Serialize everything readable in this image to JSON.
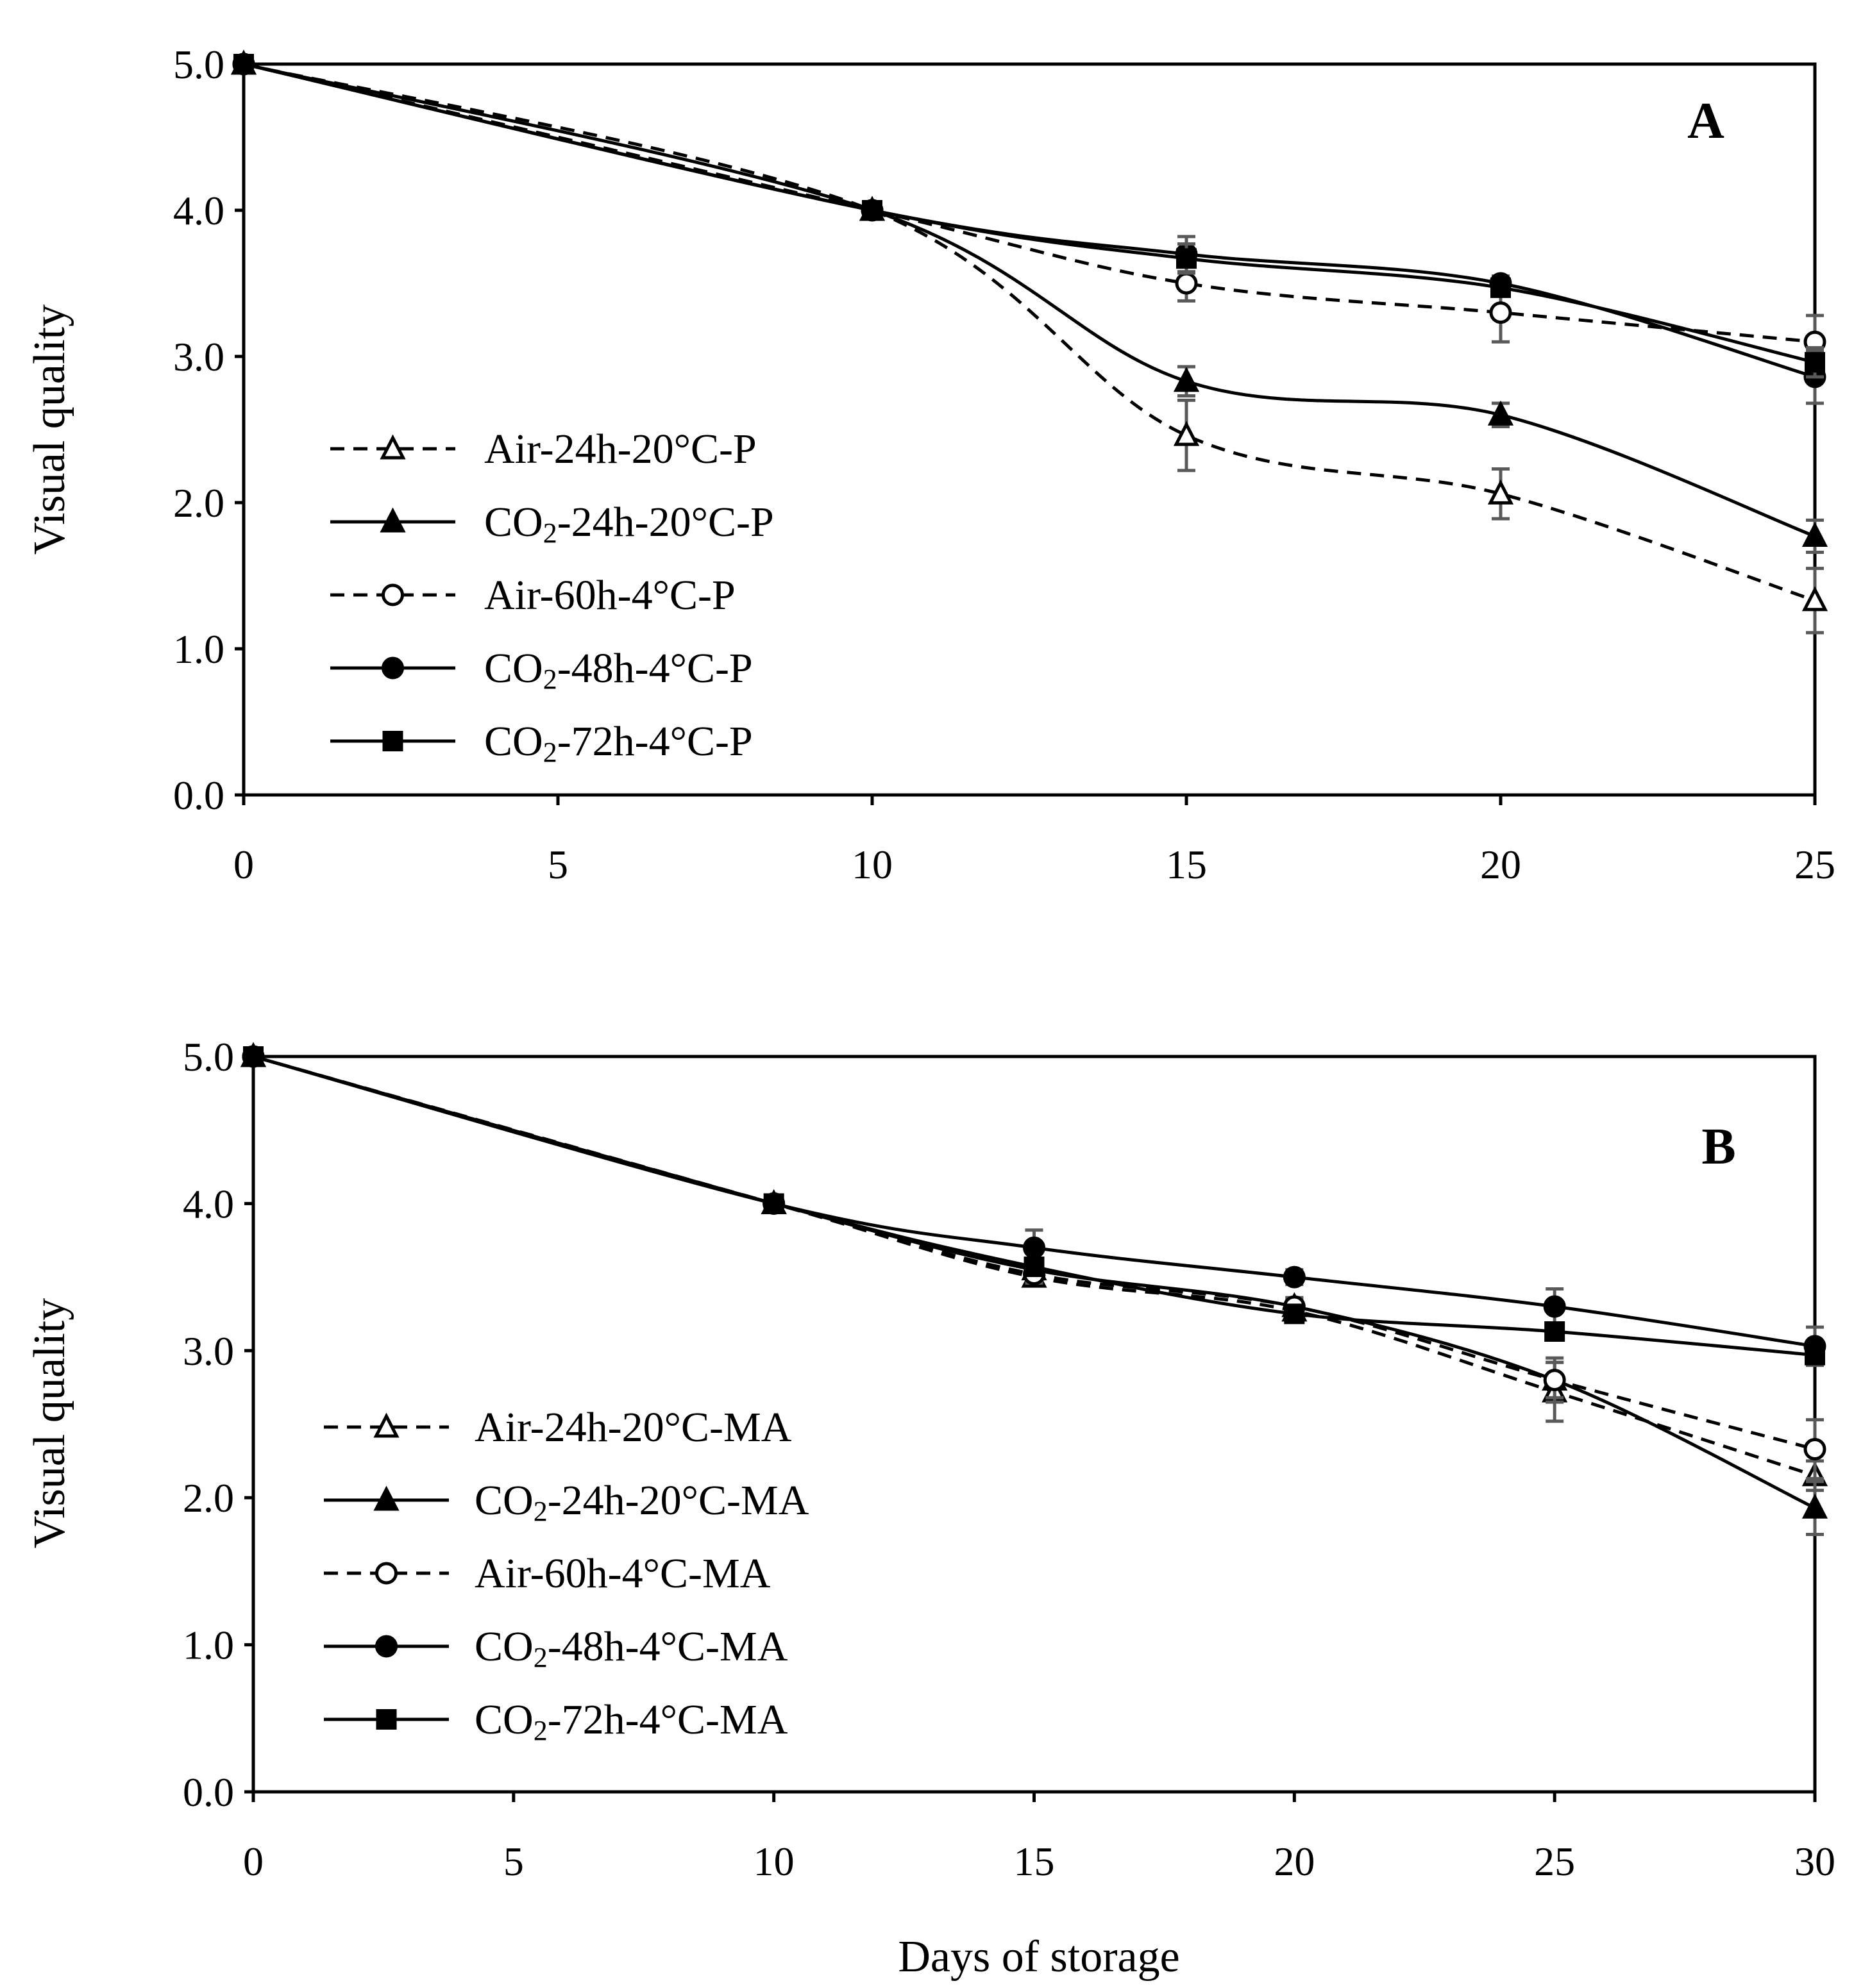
{
  "colors": {
    "ink": "#000000",
    "errorbar": "#595959",
    "background": "#ffffff"
  },
  "figure": {
    "xlabel_shared": "Days of storage"
  },
  "chart_data": [
    {
      "type": "line",
      "panel_label": "A",
      "ylabel": "Visual quality",
      "xlabel": "",
      "xlim": [
        0,
        25
      ],
      "ylim": [
        0,
        5
      ],
      "xticks": [
        "0",
        "5",
        "10",
        "15",
        "20",
        "25"
      ],
      "yticks": [
        "0.0",
        "1.0",
        "2.0",
        "3.0",
        "4.0",
        "5.0"
      ],
      "legend_position": "lower-left",
      "grid": false,
      "series": [
        {
          "name": "Air-24h-20°C-P",
          "name_prefix": "Air",
          "name_suffix": "-24h-20°C-P",
          "subscript": "",
          "marker": "open-triangle",
          "dash": "dashed",
          "x": [
            0,
            10,
            15,
            20,
            25
          ],
          "y": [
            5.0,
            4.0,
            2.46,
            2.06,
            1.33
          ],
          "err": [
            0,
            0,
            0.24,
            0.17,
            0.22
          ]
        },
        {
          "name": "CO2-24h-20°C-P",
          "name_prefix": "CO",
          "name_suffix": "-24h-20°C-P",
          "subscript": "2",
          "marker": "filled-triangle",
          "dash": "solid",
          "x": [
            0,
            10,
            15,
            20,
            25
          ],
          "y": [
            5.0,
            4.0,
            2.83,
            2.6,
            1.77
          ],
          "err": [
            0,
            0,
            0.1,
            0.08,
            0.11
          ]
        },
        {
          "name": "Air-60h-4°C-P",
          "name_prefix": "Air",
          "name_suffix": "-60h-4°C-P",
          "subscript": "",
          "marker": "open-circle",
          "dash": "dashed",
          "x": [
            0,
            10,
            15,
            20,
            25
          ],
          "y": [
            5.0,
            4.0,
            3.5,
            3.3,
            3.1
          ],
          "err": [
            0,
            0,
            0.12,
            0.2,
            0.18
          ]
        },
        {
          "name": "CO2-48h-4°C-P",
          "name_prefix": "CO",
          "name_suffix": "-48h-4°C-P",
          "subscript": "2",
          "marker": "filled-circle",
          "dash": "solid",
          "x": [
            0,
            10,
            15,
            20,
            25
          ],
          "y": [
            5.0,
            4.0,
            3.7,
            3.5,
            2.86
          ],
          "err": [
            0,
            0,
            0.12,
            0.05,
            0.18
          ]
        },
        {
          "name": "CO2-72h-4°C-P",
          "name_prefix": "CO",
          "name_suffix": "-72h-4°C-P",
          "subscript": "2",
          "marker": "filled-square",
          "dash": "solid",
          "x": [
            0,
            10,
            15,
            20,
            25
          ],
          "y": [
            5.0,
            4.0,
            3.67,
            3.47,
            2.96
          ],
          "err": [
            0,
            0,
            0.1,
            0.05,
            0.1
          ]
        }
      ]
    },
    {
      "type": "line",
      "panel_label": "B",
      "ylabel": "Visual quality",
      "xlabel": "Days of storage",
      "xlim": [
        0,
        30
      ],
      "ylim": [
        0,
        5
      ],
      "xticks": [
        "0",
        "5",
        "10",
        "15",
        "20",
        "25",
        "30"
      ],
      "yticks": [
        "0.0",
        "1.0",
        "2.0",
        "3.0",
        "4.0",
        "5.0"
      ],
      "legend_position": "lower-left",
      "grid": false,
      "series": [
        {
          "name": "Air-24h-20°C-MA",
          "name_prefix": "Air",
          "name_suffix": "-24h-20°C-MA",
          "subscript": "",
          "marker": "open-triangle",
          "dash": "dashed",
          "x": [
            0,
            10,
            15,
            20,
            25,
            30
          ],
          "y": [
            5.0,
            4.0,
            3.5,
            3.27,
            2.72,
            2.15
          ],
          "err": [
            0,
            0,
            0.05,
            0.07,
            0.2,
            0.1
          ]
        },
        {
          "name": "CO2-24h-20°C-MA",
          "name_prefix": "CO",
          "name_suffix": "-24h-20°C-MA",
          "subscript": "2",
          "marker": "filled-triangle",
          "dash": "solid",
          "x": [
            0,
            10,
            15,
            20,
            25,
            30
          ],
          "y": [
            5.0,
            4.0,
            3.55,
            3.3,
            2.8,
            1.93
          ],
          "err": [
            0,
            0,
            0.05,
            0.06,
            0.12,
            0.18
          ]
        },
        {
          "name": "Air-60h-4°C-MA",
          "name_prefix": "Air",
          "name_suffix": "-60h-4°C-MA",
          "subscript": "",
          "marker": "open-circle",
          "dash": "dashed",
          "x": [
            0,
            10,
            15,
            20,
            25,
            30
          ],
          "y": [
            5.0,
            4.0,
            3.52,
            3.3,
            2.8,
            2.33
          ],
          "err": [
            0,
            0,
            0.06,
            0.06,
            0.15,
            0.2
          ]
        },
        {
          "name": "CO2-48h-4°C-MA",
          "name_prefix": "CO",
          "name_suffix": "-48h-4°C-MA",
          "subscript": "2",
          "marker": "filled-circle",
          "dash": "solid",
          "x": [
            0,
            10,
            15,
            20,
            25,
            30
          ],
          "y": [
            5.0,
            4.0,
            3.7,
            3.5,
            3.3,
            3.03
          ],
          "err": [
            0,
            0,
            0.12,
            0.05,
            0.12,
            0.13
          ]
        },
        {
          "name": "CO2-72h-4°C-MA",
          "name_prefix": "CO",
          "name_suffix": "-72h-4°C-MA",
          "subscript": "2",
          "marker": "filled-square",
          "dash": "solid",
          "x": [
            0,
            10,
            15,
            20,
            25,
            30
          ],
          "y": [
            5.0,
            4.0,
            3.57,
            3.25,
            3.13,
            2.97
          ],
          "err": [
            0,
            0,
            0.05,
            0.05,
            0.05,
            0.05
          ]
        }
      ]
    }
  ]
}
